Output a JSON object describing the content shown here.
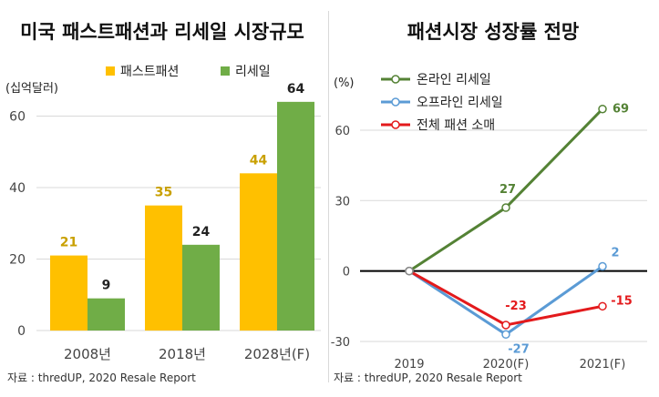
{
  "colors": {
    "fast_fashion": "#ffc000",
    "resale": "#70ad47",
    "online_resale": "#548235",
    "offline_resale": "#5b9bd5",
    "total_fashion": "#e31a1c",
    "value_label_gold": "#c9a000",
    "grid": "#d9d9d9",
    "axis": "#000000"
  },
  "chart_data": [
    {
      "type": "bar",
      "title": "미국 패스트패션과 리세일 시장규모",
      "unit_label": "(십억달러)",
      "categories": [
        "2008년",
        "2018년",
        "2028년(F)"
      ],
      "series": [
        {
          "name": "패스트패션",
          "values": [
            21,
            35,
            44
          ]
        },
        {
          "name": "리세일",
          "values": [
            9,
            24,
            64
          ]
        }
      ],
      "value_labels": [
        [
          "21",
          "35",
          "44"
        ],
        [
          "9",
          "24",
          "64"
        ]
      ],
      "yticks": [
        "0",
        "20",
        "40",
        "60"
      ],
      "ylim": [
        0,
        66
      ],
      "grid": true,
      "legend": "top",
      "source": "자료 : thredUP, 2020 Resale Report"
    },
    {
      "type": "line",
      "title": "패션시장 성장률 전망",
      "unit_label": "(%)",
      "categories": [
        "2019",
        "2020(F)",
        "2021(F)"
      ],
      "series": [
        {
          "name": "온라인 리세일",
          "values": [
            0,
            27,
            69
          ]
        },
        {
          "name": "오프라인 리세일",
          "values": [
            0,
            -27,
            2
          ]
        },
        {
          "name": "전체 패션 소매",
          "values": [
            0,
            -23,
            -15
          ]
        }
      ],
      "value_labels": [
        [
          "",
          "27",
          "69"
        ],
        [
          "",
          "-27",
          "2"
        ],
        [
          "",
          "-23",
          "-15"
        ]
      ],
      "yticks": [
        "-30",
        "0",
        "30",
        "60"
      ],
      "ylim": [
        -30,
        72
      ],
      "grid": true,
      "legend": "top-left",
      "source": "자료 : thredUP, 2020 Resale Report"
    }
  ]
}
